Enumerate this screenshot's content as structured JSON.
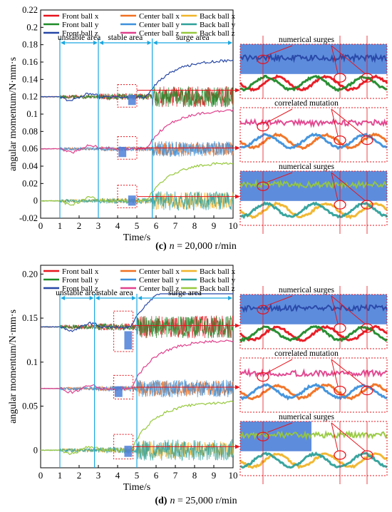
{
  "chart_data": [
    {
      "type": "line",
      "caption": {
        "letter": "(c)",
        "var": "n",
        "text": " = 20,000 r/min"
      },
      "ylabel": "angular momentum/N·mm·s",
      "xlabel": "Time/s",
      "xlim": [
        0,
        10
      ],
      "ylim": [
        -0.02,
        0.22
      ],
      "xticks": [
        0,
        1,
        2,
        3,
        4,
        5,
        6,
        7,
        8,
        9,
        10
      ],
      "yticks": [
        "-0.02",
        "0",
        "0.02",
        "0.04",
        "0.06",
        "0.08",
        "0.1",
        "0.12",
        "0.14",
        "0.16",
        "0.18",
        "0.2",
        "0.22"
      ],
      "areas": [
        {
          "label": "unstable area",
          "from": 1,
          "to": 3
        },
        {
          "label": "stable area",
          "from": 3,
          "to": 5.8
        },
        {
          "label": "surge area",
          "from": 5.8,
          "to": 10
        }
      ],
      "series": [
        {
          "name": "Front ball x",
          "color": "#e8141c",
          "base": 0.12,
          "surge": 0.0,
          "amp": 0.012
        },
        {
          "name": "Front ball y",
          "color": "#1e8a28",
          "base": 0.12,
          "surge": 0.0,
          "amp": 0.012
        },
        {
          "name": "Front ball z",
          "color": "#2747a6",
          "base": 0.12,
          "surge": 0.043,
          "amp": 0.003
        },
        {
          "name": "Center ball x",
          "color": "#f07020",
          "base": 0.06,
          "surge": 0.0,
          "amp": 0.008
        },
        {
          "name": "Center ball y",
          "color": "#3c90dc",
          "base": 0.06,
          "surge": 0.0,
          "amp": 0.009
        },
        {
          "name": "Center ball z",
          "color": "#e0408c",
          "base": 0.06,
          "surge": 0.045,
          "amp": 0.003
        },
        {
          "name": "Back ball x",
          "color": "#f0b428",
          "base": 0.0,
          "surge": 0.0,
          "amp": 0.01
        },
        {
          "name": "Back ball y",
          "color": "#2ea09a",
          "base": 0.0,
          "surge": 0.0,
          "amp": 0.011
        },
        {
          "name": "Back ball z",
          "color": "#96c83c",
          "base": 0.0,
          "surge": 0.045,
          "amp": 0.003
        }
      ],
      "insets": [
        {
          "label": "numerical surges"
        },
        {
          "label": "correlated mutation"
        },
        {
          "label": "numerical surges"
        }
      ]
    },
    {
      "type": "line",
      "caption": {
        "letter": "(d)",
        "var": "n",
        "text": " = 25,000 r/min"
      },
      "ylabel": "angular momentum/N·mm·s",
      "xlabel": "Time/s",
      "xlim": [
        0,
        10
      ],
      "ylim": [
        -0.02,
        0.21
      ],
      "xticks": [
        0,
        1,
        2,
        3,
        4,
        5,
        6,
        7,
        8,
        9,
        10
      ],
      "yticks": [
        "0",
        "0.05",
        "0.1",
        "0.15",
        "0.20"
      ],
      "ytick_values": [
        0,
        0.05,
        0.1,
        0.15,
        0.2
      ],
      "areas": [
        {
          "label": "unstable area",
          "from": 1,
          "to": 2.8
        },
        {
          "label": "stable area",
          "from": 2.8,
          "to": 5
        },
        {
          "label": "surge area",
          "from": 5,
          "to": 10
        }
      ],
      "series": [
        {
          "name": "Front ball x",
          "color": "#e8141c",
          "base": 0.14,
          "surge": 0.0,
          "amp": 0.013
        },
        {
          "name": "Front ball y",
          "color": "#1e8a28",
          "base": 0.14,
          "surge": 0.0,
          "amp": 0.013
        },
        {
          "name": "Front ball z",
          "color": "#2747a6",
          "base": 0.14,
          "surge": 0.053,
          "amp": 0.003
        },
        {
          "name": "Center ball x",
          "color": "#f07020",
          "base": 0.07,
          "surge": 0.0,
          "amp": 0.009
        },
        {
          "name": "Center ball y",
          "color": "#3c90dc",
          "base": 0.07,
          "surge": 0.0,
          "amp": 0.01
        },
        {
          "name": "Center ball z",
          "color": "#e0408c",
          "base": 0.07,
          "surge": 0.055,
          "amp": 0.003
        },
        {
          "name": "Back ball x",
          "color": "#f0b428",
          "base": 0.0,
          "surge": 0.0,
          "amp": 0.01
        },
        {
          "name": "Back ball y",
          "color": "#2ea09a",
          "base": 0.0,
          "surge": 0.0,
          "amp": 0.012
        },
        {
          "name": "Back ball z",
          "color": "#96c83c",
          "base": 0.0,
          "surge": 0.055,
          "amp": 0.003
        }
      ],
      "insets": [
        {
          "label": "numerical surges"
        },
        {
          "label": "correlated mutation"
        },
        {
          "label": "numerical surges"
        }
      ]
    }
  ]
}
